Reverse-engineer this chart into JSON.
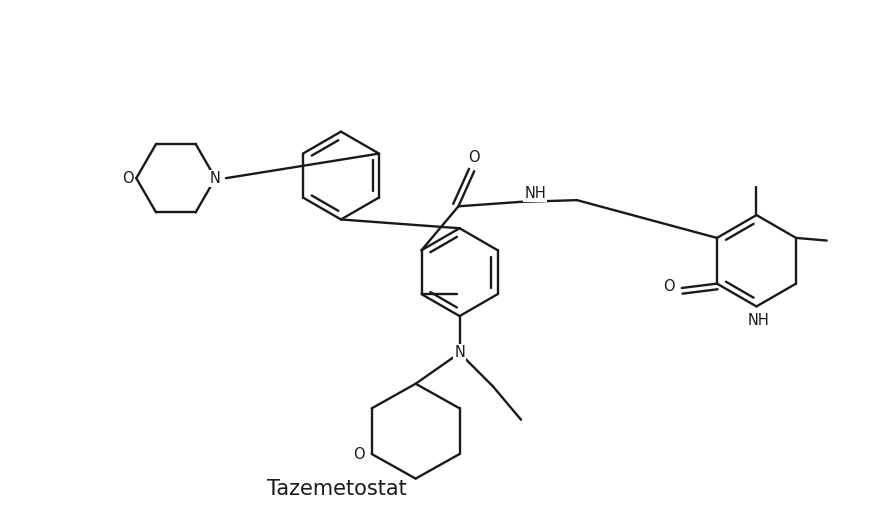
{
  "title": "Tazemetostat",
  "title_fontsize": 15,
  "bg": "#ffffff",
  "lc": "#1a1a1a",
  "lw": 1.7,
  "fs": 10.5,
  "xlim": [
    0,
    10
  ],
  "ylim": [
    0,
    5.8
  ]
}
